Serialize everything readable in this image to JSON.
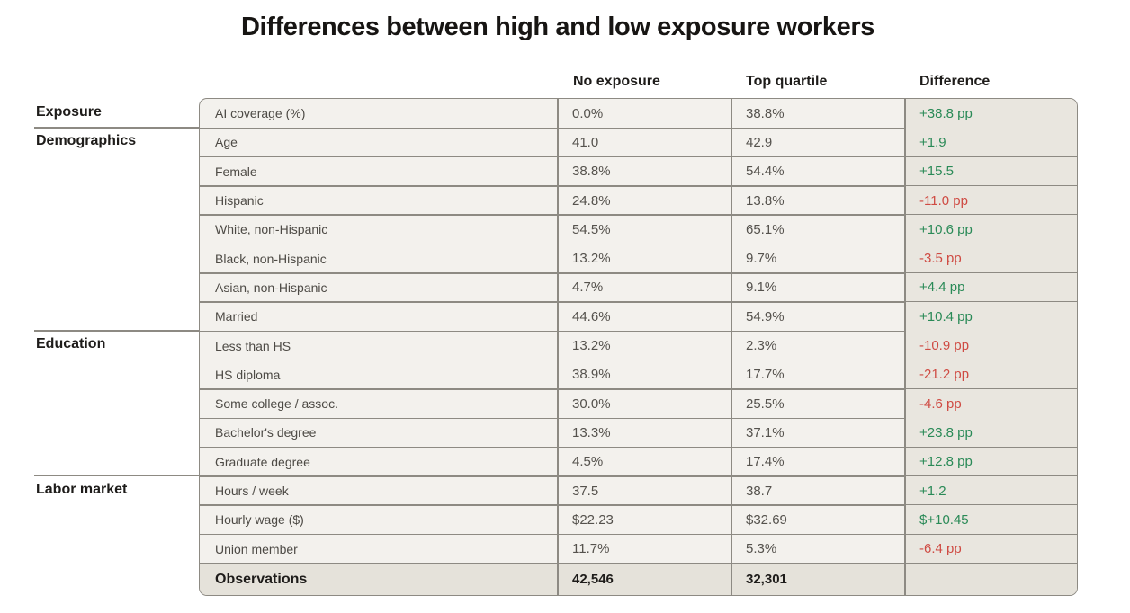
{
  "title": "Differences between high and low exposure workers",
  "columns": {
    "no_exposure": "No exposure",
    "top_quartile": "Top quartile",
    "difference": "Difference"
  },
  "colors": {
    "positive": "#2a8a57",
    "negative": "#cf4b43",
    "panel": "#f3f1ed",
    "difference_column": "#e9e6df",
    "border": "#8d8a83"
  },
  "groups": [
    {
      "label": "Exposure",
      "rows": [
        {
          "label": "AI coverage (%)",
          "no_exposure": "0.0%",
          "top_quartile": "38.8%",
          "difference": "+38.8 pp",
          "sign": "pos"
        }
      ]
    },
    {
      "label": "Demographics",
      "rows": [
        {
          "label": "Age",
          "no_exposure": "41.0",
          "top_quartile": "42.9",
          "difference": "+1.9",
          "sign": "pos"
        },
        {
          "label": "Female",
          "no_exposure": "38.8%",
          "top_quartile": "54.4%",
          "difference": "+15.5",
          "sign": "pos"
        },
        {
          "label": "Hispanic",
          "no_exposure": "24.8%",
          "top_quartile": "13.8%",
          "difference": "-11.0 pp",
          "sign": "neg"
        },
        {
          "label": "White, non-Hispanic",
          "no_exposure": "54.5%",
          "top_quartile": "65.1%",
          "difference": "+10.6 pp",
          "sign": "pos"
        },
        {
          "label": "Black, non-Hispanic",
          "no_exposure": "13.2%",
          "top_quartile": "9.7%",
          "difference": "-3.5 pp",
          "sign": "neg"
        },
        {
          "label": "Asian, non-Hispanic",
          "no_exposure": "4.7%",
          "top_quartile": "9.1%",
          "difference": "+4.4 pp",
          "sign": "pos"
        },
        {
          "label": "Married",
          "no_exposure": "44.6%",
          "top_quartile": "54.9%",
          "difference": "+10.4 pp",
          "sign": "pos"
        }
      ]
    },
    {
      "label": "Education",
      "rows": [
        {
          "label": "Less than HS",
          "no_exposure": "13.2%",
          "top_quartile": "2.3%",
          "difference": "-10.9 pp",
          "sign": "neg"
        },
        {
          "label": "HS diploma",
          "no_exposure": "38.9%",
          "top_quartile": "17.7%",
          "difference": "-21.2 pp",
          "sign": "neg"
        },
        {
          "label": "Some college / assoc.",
          "no_exposure": "30.0%",
          "top_quartile": "25.5%",
          "difference": "-4.6 pp",
          "sign": "neg"
        },
        {
          "label": "Bachelor's degree",
          "no_exposure": "13.3%",
          "top_quartile": "37.1%",
          "difference": "+23.8 pp",
          "sign": "pos"
        },
        {
          "label": "Graduate degree",
          "no_exposure": "4.5%",
          "top_quartile": "17.4%",
          "difference": "+12.8 pp",
          "sign": "pos"
        }
      ]
    },
    {
      "label": "Labor market",
      "rows": [
        {
          "label": "Hours / week",
          "no_exposure": "37.5",
          "top_quartile": "38.7",
          "difference": "+1.2",
          "sign": "pos"
        },
        {
          "label": "Hourly wage ($)",
          "no_exposure": "$22.23",
          "top_quartile": "$32.69",
          "difference": "$+10.45",
          "sign": "pos"
        },
        {
          "label": "Union member",
          "no_exposure": "11.7%",
          "top_quartile": "5.3%",
          "difference": "-6.4 pp",
          "sign": "neg"
        }
      ]
    }
  ],
  "observations": {
    "label": "Observations",
    "no_exposure": "42,546",
    "top_quartile": "32,301",
    "difference": ""
  },
  "chart_data": {
    "type": "table",
    "title": "Differences between high and low exposure workers",
    "columns": [
      "",
      "",
      "No exposure",
      "Top quartile",
      "Difference"
    ],
    "rows": [
      [
        "Exposure",
        "AI coverage (%)",
        "0.0%",
        "38.8%",
        "+38.8 pp"
      ],
      [
        "Demographics",
        "Age",
        "41.0",
        "42.9",
        "+1.9"
      ],
      [
        "Demographics",
        "Female",
        "38.8%",
        "54.4%",
        "+15.5"
      ],
      [
        "Demographics",
        "Hispanic",
        "24.8%",
        "13.8%",
        "-11.0 pp"
      ],
      [
        "Demographics",
        "White, non-Hispanic",
        "54.5%",
        "65.1%",
        "+10.6 pp"
      ],
      [
        "Demographics",
        "Black, non-Hispanic",
        "13.2%",
        "9.7%",
        "-3.5 pp"
      ],
      [
        "Demographics",
        "Asian, non-Hispanic",
        "4.7%",
        "9.1%",
        "+4.4 pp"
      ],
      [
        "Demographics",
        "Married",
        "44.6%",
        "54.9%",
        "+10.4 pp"
      ],
      [
        "Education",
        "Less than HS",
        "13.2%",
        "2.3%",
        "-10.9 pp"
      ],
      [
        "Education",
        "HS diploma",
        "38.9%",
        "17.7%",
        "-21.2 pp"
      ],
      [
        "Education",
        "Some college / assoc.",
        "30.0%",
        "25.5%",
        "-4.6 pp"
      ],
      [
        "Education",
        "Bachelor's degree",
        "13.3%",
        "37.1%",
        "+23.8 pp"
      ],
      [
        "Education",
        "Graduate degree",
        "4.5%",
        "17.4%",
        "+12.8 pp"
      ],
      [
        "Labor market",
        "Hours / week",
        "37.5",
        "38.7",
        "+1.2"
      ],
      [
        "Labor market",
        "Hourly wage ($)",
        "$22.23",
        "$32.69",
        "$+10.45"
      ],
      [
        "Labor market",
        "Union member",
        "11.7%",
        "5.3%",
        "-6.4 pp"
      ],
      [
        "",
        "Observations",
        "42,546",
        "32,301",
        ""
      ]
    ]
  }
}
